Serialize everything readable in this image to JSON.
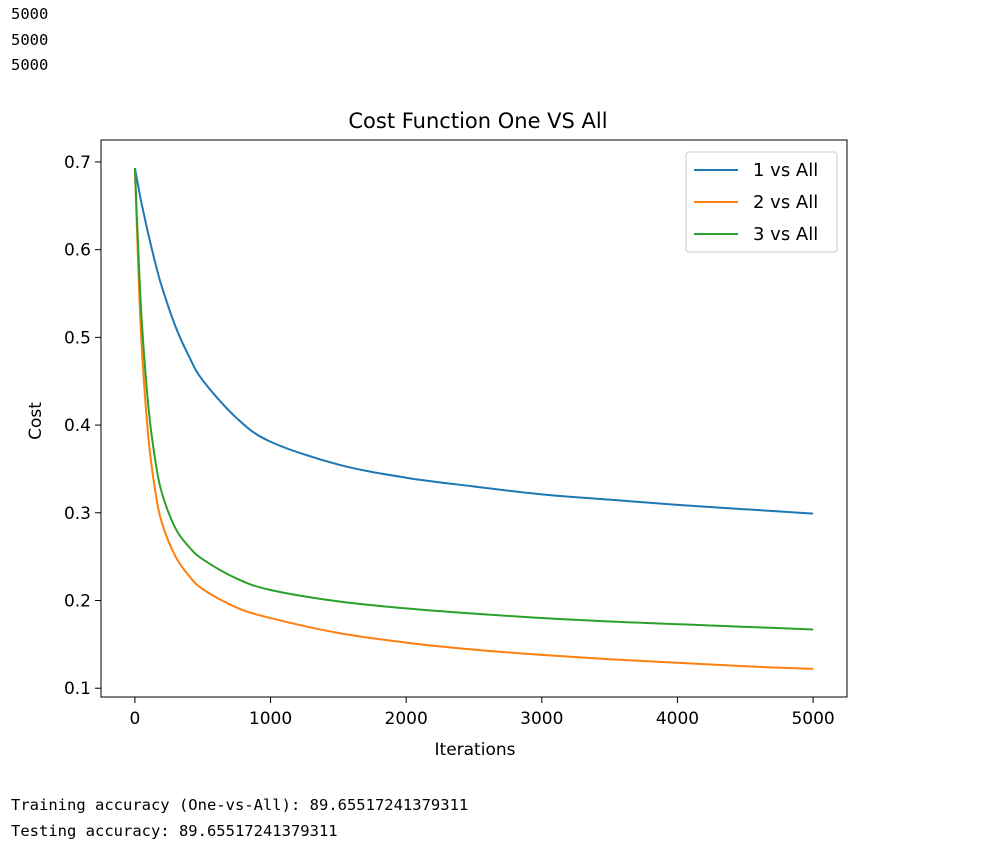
{
  "output_lines_top": [
    "5000",
    "5000",
    "5000"
  ],
  "output_lines_bottom": [
    "Training accuracy (One-vs-All): 89.65517241379311",
    "Testing accuracy: 89.65517241379311"
  ],
  "chart_data": {
    "type": "line",
    "title": "Cost Function One VS All",
    "xlabel": "Iterations",
    "ylabel": "Cost",
    "xlim": [
      -250,
      5250
    ],
    "ylim": [
      0.09,
      0.725
    ],
    "xticks": [
      0,
      1000,
      2000,
      3000,
      4000,
      5000
    ],
    "yticks": [
      0.1,
      0.2,
      0.3,
      0.4,
      0.5,
      0.6,
      0.7
    ],
    "legend": "top-right",
    "grid": false,
    "x": [
      0,
      25,
      50,
      100,
      150,
      200,
      300,
      400,
      500,
      750,
      1000,
      1500,
      2000,
      2500,
      3000,
      3500,
      4000,
      4500,
      5000
    ],
    "series": [
      {
        "name": "1 vs All",
        "color": "#1f77b4",
        "values": [
          0.693,
          0.672,
          0.652,
          0.617,
          0.585,
          0.557,
          0.512,
          0.478,
          0.451,
          0.408,
          0.381,
          0.355,
          0.34,
          0.33,
          0.321,
          0.315,
          0.309,
          0.304,
          0.299
        ]
      },
      {
        "name": "2 vs All",
        "color": "#ff7f0e",
        "values": [
          0.693,
          0.58,
          0.49,
          0.385,
          0.325,
          0.288,
          0.25,
          0.228,
          0.213,
          0.192,
          0.18,
          0.163,
          0.152,
          0.144,
          0.138,
          0.133,
          0.129,
          0.125,
          0.122
        ]
      },
      {
        "name": "3 vs All",
        "color": "#2ca02c",
        "values": [
          0.693,
          0.6,
          0.52,
          0.42,
          0.36,
          0.322,
          0.282,
          0.261,
          0.247,
          0.225,
          0.212,
          0.199,
          0.191,
          0.185,
          0.18,
          0.176,
          0.173,
          0.17,
          0.167
        ]
      }
    ]
  }
}
